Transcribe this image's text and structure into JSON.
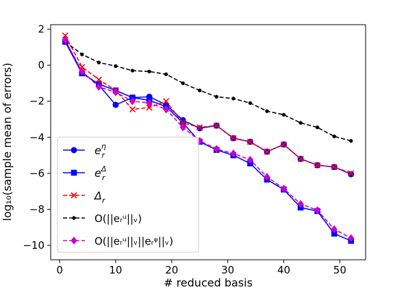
{
  "chart_data": {
    "type": "line",
    "xlabel": "# reduced basis",
    "ylabel": "log₁₀(sample mean of errors)",
    "xlim": [
      -1.6,
      54.6
    ],
    "ylim": [
      -10.8,
      2.25
    ],
    "xticks": [
      0,
      10,
      20,
      30,
      40,
      50
    ],
    "yticks": [
      2,
      0,
      -2,
      -4,
      -6,
      -8,
      -10
    ],
    "xtick_labels": [
      "0",
      "10",
      "20",
      "30",
      "40",
      "50"
    ],
    "ytick_labels": [
      "2",
      "0",
      "−2",
      "−4",
      "−6",
      "−8",
      "−10"
    ],
    "grid": false,
    "legend_position": "lower-left",
    "x": [
      1,
      4,
      7,
      10,
      13,
      16,
      19,
      22,
      25,
      28,
      31,
      34,
      37,
      40,
      43,
      46,
      49,
      52
    ],
    "series": [
      {
        "name": "e_r^η",
        "legend_base": "e",
        "legend_sub": "r",
        "legend_sup": "η",
        "color": "#0000ff",
        "marker": "circle",
        "dash": "solid",
        "values": [
          1.35,
          -0.4,
          -1.1,
          -2.2,
          -1.8,
          -1.75,
          -2.2,
          -3.05,
          -3.5,
          -3.35,
          -4.05,
          -4.25,
          -4.8,
          -4.4,
          -5.2,
          -5.55,
          -5.65,
          -6.05
        ]
      },
      {
        "name": "e_r^Δ",
        "legend_base": "e",
        "legend_sub": "r",
        "legend_sup": "Δ",
        "color": "#0000ff",
        "marker": "square",
        "dash": "solid",
        "values": [
          1.3,
          -0.45,
          -1.05,
          -1.4,
          -1.8,
          -1.95,
          -2.3,
          -3.2,
          -4.25,
          -4.7,
          -5.0,
          -5.45,
          -6.35,
          -6.9,
          -7.9,
          -8.1,
          -9.35,
          -9.75
        ]
      },
      {
        "name": "Δ_r",
        "legend_base": "Δ",
        "legend_sub": "r",
        "legend_sup": "",
        "color": "#ff0000",
        "marker": "x",
        "dash": "dashed",
        "values": [
          1.65,
          -0.1,
          -0.8,
          -1.4,
          -2.45,
          -2.35,
          -2.0,
          -3.2,
          -3.45,
          -3.35,
          -4.05,
          -4.25,
          -4.8,
          -4.4,
          -5.2,
          -5.55,
          -5.65,
          -6.0
        ]
      },
      {
        "name": "O(||e_r^u||_V)",
        "legend_plain": "O(||eᵣᵘ||ᵥ)",
        "color": "#000000",
        "marker": "dot",
        "dash": "dashed",
        "values": [
          1.3,
          0.6,
          0.15,
          -0.05,
          -0.3,
          -0.35,
          -0.5,
          -1.0,
          -1.4,
          -1.75,
          -1.85,
          -2.1,
          -2.55,
          -2.75,
          -3.2,
          -3.45,
          -3.95,
          -4.2
        ]
      },
      {
        "name": "O(||e_r^u||_V||e_r^ψ||_V)",
        "legend_plain": "O(||eᵣᵘ||ᵥ||eᵣᵠ||ᵥ)",
        "color": "#cc00cc",
        "marker": "diamond",
        "dash": "dashed",
        "values": [
          1.4,
          -0.35,
          -1.2,
          -1.5,
          -2.0,
          -2.1,
          -2.45,
          -3.45,
          -4.2,
          -4.65,
          -4.9,
          -5.25,
          -6.2,
          -6.85,
          -7.7,
          -8.05,
          -9.1,
          -9.6
        ]
      }
    ]
  }
}
